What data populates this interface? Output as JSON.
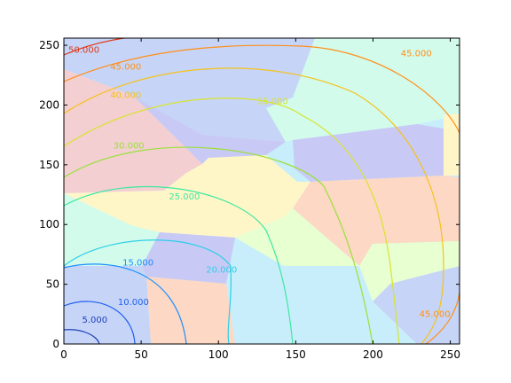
{
  "chart_data": {
    "type": "contour",
    "title": "",
    "xlabel": "",
    "ylabel": "",
    "xlim": [
      0,
      256
    ],
    "ylim": [
      0,
      256
    ],
    "x_ticks": [
      0,
      50,
      100,
      150,
      200,
      250
    ],
    "y_ticks": [
      0,
      50,
      100,
      150,
      200,
      250
    ],
    "grid": false,
    "legend": "none",
    "background_regions": [
      {
        "color": "#c6d5f7",
        "region": "top-centre / top-right"
      },
      {
        "color": "#f3cfd2",
        "region": "upper-left"
      },
      {
        "color": "#c9c9f5",
        "region": "centre-left band, right-centre patch, lower-left patch"
      },
      {
        "color": "#d2fbeb",
        "region": "top-right, left-middle"
      },
      {
        "color": "#fff6c8",
        "region": "centre band, right edge"
      },
      {
        "color": "#c7eefa",
        "region": "centre patch, bottom-centre"
      },
      {
        "color": "#e8ffd2",
        "region": "lower-centre"
      },
      {
        "color": "#fdd8c5",
        "region": "bottom-left-centre, right-centre"
      }
    ],
    "contour_labels": [
      {
        "value": "5.000",
        "x": 20,
        "y": 20,
        "color": "#1f3fb8"
      },
      {
        "value": "10.000",
        "x": 45,
        "y": 35,
        "color": "#1f5ff0"
      },
      {
        "value": "15.000",
        "x": 48,
        "y": 68,
        "color": "#1a8fff"
      },
      {
        "value": "20.000",
        "x": 102,
        "y": 62,
        "color": "#2ccfe8"
      },
      {
        "value": "25.000",
        "x": 78,
        "y": 123,
        "color": "#3ee8a0"
      },
      {
        "value": "30.000",
        "x": 42,
        "y": 166,
        "color": "#9be03a"
      },
      {
        "value": "35.000",
        "x": 135,
        "y": 203,
        "color": "#d8e42a"
      },
      {
        "value": "40.000",
        "x": 40,
        "y": 208,
        "color": "#f5c21a"
      },
      {
        "value": "45.000",
        "x": 40,
        "y": 232,
        "color": "#ff8f1a"
      },
      {
        "value": "45.000",
        "x": 228,
        "y": 243,
        "color": "#ff8f1a"
      },
      {
        "value": "45.000",
        "x": 240,
        "y": 25,
        "color": "#ff8f1a"
      },
      {
        "value": "50.000",
        "x": 13,
        "y": 246,
        "color": "#e03a1a"
      }
    ]
  }
}
